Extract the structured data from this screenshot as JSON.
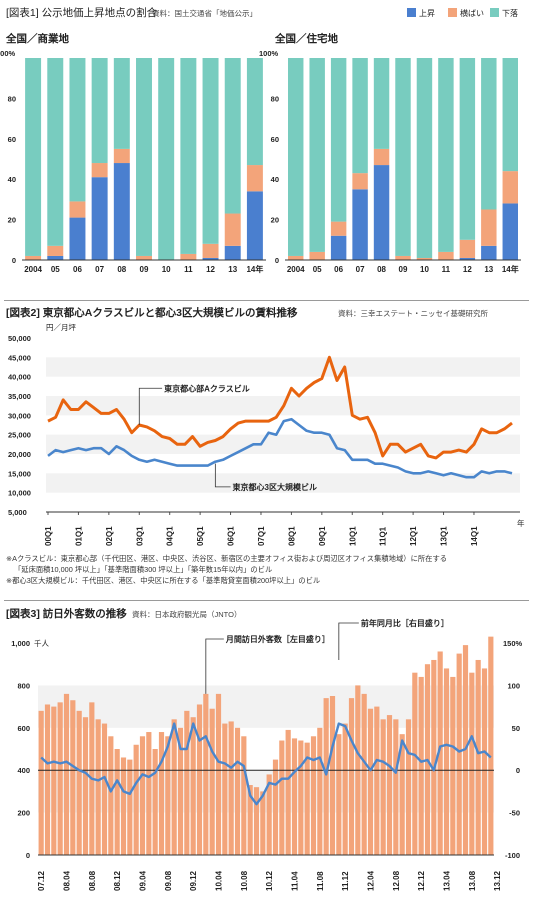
{
  "colors": {
    "up": "#4a7fcf",
    "flat": "#f3a47a",
    "down": "#78ccbf",
    "bg": "#f2f2f2",
    "a_line": "#e8640f",
    "b_line": "#4a86cc",
    "visitors_bar": "#f3a47a",
    "yoy_line": "#4a86cc"
  },
  "fig1": {
    "header": "[図表1] 公示地価上昇地点の割合",
    "source": "資料：国土交通省「地価公示」",
    "legend": [
      "上昇",
      "横ばい",
      "下落"
    ]
  },
  "fig2": {
    "header": "[図表2] 東京都心Aクラスビルと都心3区大規模ビルの賃料推移",
    "source": "資料：三幸エステート・ニッセイ基礎研究所",
    "note1": "※Aクラスビル：東京都心部（千代田区、港区、中央区、渋谷区、新宿区の主要オフィス街および周辺区オフィス集積地域）に所在する",
    "note2": "「延床面積10,000 坪以上」「基準階面積300 坪以上」「築年数15年以内」のビル",
    "note3": "※都心3区大規模ビル：千代田区、港区、中央区に所在する「基準階貸室面積200坪以上」のビル"
  },
  "fig3": {
    "header": "[図表3] 訪日外客数の推移",
    "source": "資料：日本政府観光局（JNTO）"
  },
  "chart_data": [
    {
      "type": "bar",
      "title": "全国／商業地",
      "ylabel": "100%",
      "categories": [
        "2004",
        "05",
        "06",
        "07",
        "08",
        "09",
        "10",
        "11",
        "12",
        "13",
        "14年"
      ],
      "ylim": [
        0,
        100
      ],
      "yticks": [
        "0",
        "20",
        "40",
        "60",
        "80"
      ],
      "stacked": true,
      "series": [
        {
          "name": "上昇",
          "values": [
            0,
            2,
            21,
            41,
            48,
            0,
            0,
            0,
            1,
            7,
            34
          ]
        },
        {
          "name": "横ばい",
          "values": [
            2,
            5,
            8,
            7,
            7,
            2,
            0,
            3,
            7,
            16,
            13
          ]
        },
        {
          "name": "下落",
          "values": [
            98,
            93,
            71,
            52,
            45,
            98,
            100,
            97,
            92,
            77,
            53
          ]
        }
      ]
    },
    {
      "type": "bar",
      "title": "全国／住宅地",
      "ylabel": "100%",
      "categories": [
        "2004",
        "05",
        "06",
        "07",
        "08",
        "09",
        "10",
        "11",
        "12",
        "13",
        "14年"
      ],
      "ylim": [
        0,
        100
      ],
      "yticks": [
        "0",
        "20",
        "40",
        "60",
        "80"
      ],
      "stacked": true,
      "series": [
        {
          "name": "上昇",
          "values": [
            0,
            0,
            12,
            35,
            47,
            0,
            0,
            0,
            1,
            7,
            28
          ]
        },
        {
          "name": "横ばい",
          "values": [
            2,
            4,
            7,
            8,
            8,
            2,
            1,
            4,
            9,
            18,
            16
          ]
        },
        {
          "name": "下落",
          "values": [
            98,
            96,
            81,
            57,
            45,
            98,
            99,
            96,
            90,
            75,
            56
          ]
        }
      ]
    },
    {
      "type": "line",
      "title": "",
      "ylabel": "円／月坪",
      "xlabel": "年",
      "ylim": [
        5000,
        50000
      ],
      "yticks": [
        "5,000",
        "10,000",
        "15,000",
        "20,000",
        "25,000",
        "30,000",
        "35,000",
        "40,000",
        "45,000",
        "50,000"
      ],
      "xticks": [
        "00Q1",
        "01Q1",
        "02Q1",
        "03Q1",
        "04Q1",
        "05Q1",
        "06Q1",
        "07Q1",
        "08Q1",
        "09Q1",
        "10Q1",
        "11Q1",
        "12Q1",
        "13Q1",
        "14Q1"
      ],
      "series": [
        {
          "name": "東京都心部Aクラスビル",
          "values": [
            28500,
            29500,
            34000,
            31500,
            31500,
            33500,
            32000,
            30500,
            30500,
            31500,
            29000,
            25500,
            27500,
            27000,
            26000,
            24500,
            24000,
            22500,
            22500,
            24500,
            22000,
            23000,
            23500,
            24500,
            26500,
            28000,
            28500,
            28500,
            28500,
            28500,
            29500,
            32500,
            37000,
            35000,
            37000,
            38500,
            39500,
            45000,
            39000,
            42500,
            30000,
            29000,
            29500,
            25500,
            19500,
            22500,
            22500,
            20500,
            21500,
            22500,
            19500,
            19000,
            20500,
            20500,
            21000,
            20500,
            22500,
            26500,
            25500,
            25500,
            26500,
            28000
          ]
        },
        {
          "name": "東京都心3区大規模ビル",
          "values": [
            19500,
            21000,
            20500,
            21000,
            21500,
            21000,
            21500,
            21500,
            20000,
            22000,
            21000,
            19500,
            18500,
            18000,
            18500,
            18000,
            17500,
            17000,
            17000,
            17000,
            17000,
            17000,
            18000,
            18500,
            19500,
            20500,
            21500,
            22500,
            22500,
            25500,
            25000,
            28500,
            29000,
            27500,
            26000,
            25500,
            25500,
            25000,
            21500,
            21000,
            18500,
            18500,
            18500,
            17500,
            17500,
            17000,
            16500,
            15500,
            15000,
            15000,
            15500,
            15000,
            14500,
            15000,
            14500,
            14000,
            14000,
            15500,
            15000,
            15500,
            15500,
            15000
          ]
        }
      ]
    },
    {
      "type": "bar",
      "title": "",
      "ylabel": "千人",
      "y2label": "150%",
      "ylim": [
        0,
        1000
      ],
      "y2lim": [
        -100,
        150
      ],
      "yticks": [
        "0",
        "200",
        "400",
        "600",
        "800",
        "1,000"
      ],
      "y2ticks": [
        "-100",
        "-50",
        "0",
        "50",
        "100"
      ],
      "xticks": [
        "07.12",
        "08.04",
        "08.08",
        "08.12",
        "09.04",
        "09.08",
        "09.12",
        "10.04",
        "10.08",
        "10.12",
        "11.04",
        "11.08",
        "11.12",
        "12.04",
        "12.08",
        "12.12",
        "13.04",
        "13.08",
        "13.12"
      ],
      "series": [
        {
          "name": "月間訪日外客数［左目盛り］",
          "values": [
            680,
            710,
            700,
            720,
            760,
            730,
            680,
            650,
            720,
            640,
            620,
            560,
            500,
            460,
            450,
            520,
            560,
            580,
            500,
            580,
            560,
            640,
            600,
            680,
            650,
            710,
            760,
            690,
            760,
            620,
            630,
            600,
            560,
            330,
            320,
            300,
            380,
            450,
            540,
            590,
            550,
            540,
            530,
            560,
            600,
            740,
            750,
            570,
            620,
            740,
            800,
            760,
            690,
            700,
            640,
            660,
            640,
            570,
            640,
            860,
            840,
            900,
            920,
            960,
            880,
            840,
            950,
            990,
            860,
            920,
            880,
            1030
          ]
        },
        {
          "name": "前年同月比［右目盛り］",
          "values": [
            15,
            8,
            10,
            8,
            10,
            5,
            0,
            -3,
            -10,
            -12,
            -8,
            -25,
            -12,
            -25,
            -28,
            -15,
            -5,
            -8,
            -3,
            10,
            28,
            55,
            25,
            25,
            55,
            35,
            40,
            22,
            10,
            8,
            3,
            10,
            5,
            -30,
            -40,
            -30,
            -15,
            -17,
            -10,
            -10,
            -2,
            5,
            15,
            12,
            15,
            -5,
            28,
            55,
            52,
            35,
            20,
            10,
            0,
            12,
            10,
            5,
            -3,
            35,
            20,
            18,
            10,
            12,
            0,
            28,
            30,
            28,
            22,
            25,
            40,
            20,
            22,
            15
          ]
        }
      ]
    }
  ],
  "fig2_labels": {
    "a_label": "東京都心部Aクラスビル",
    "b_label": "東京都心3区大規模ビル"
  },
  "fig3_labels": {
    "bar_label": "月間訪日外客数［左目盛り］",
    "line_label": "前年同月比［右目盛り］"
  }
}
